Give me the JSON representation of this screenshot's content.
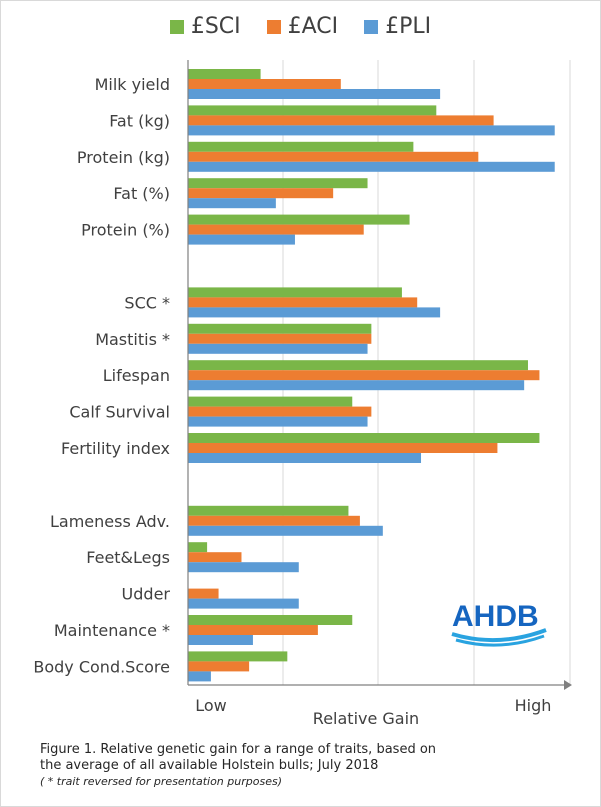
{
  "chart_data": {
    "type": "bar",
    "orientation": "horizontal",
    "categories": [
      "Milk yield",
      "Fat (kg)",
      "Protein (kg)",
      "Fat (%)",
      "Protein (%)",
      "",
      "SCC *",
      "Mastitis *",
      "Lifespan",
      "Calf Survival",
      "Fertility index",
      "",
      "Lameness Adv.",
      "Feet&Legs",
      "Udder",
      "Maintenance *",
      "Body Cond.Score"
    ],
    "series": [
      {
        "name": "£SCI",
        "color": "#7ab648",
        "values": [
          0.19,
          0.65,
          0.59,
          0.47,
          0.58,
          null,
          0.56,
          0.48,
          0.89,
          0.43,
          0.92,
          null,
          0.42,
          0.05,
          0.0,
          0.43,
          0.26
        ]
      },
      {
        "name": "£ACI",
        "color": "#ed7d31",
        "values": [
          0.4,
          0.8,
          0.76,
          0.38,
          0.46,
          null,
          0.6,
          0.48,
          0.92,
          0.48,
          0.81,
          null,
          0.45,
          0.14,
          0.08,
          0.34,
          0.16
        ]
      },
      {
        "name": "£PLI",
        "color": "#5b9bd5",
        "values": [
          0.66,
          0.96,
          0.96,
          0.23,
          0.28,
          null,
          0.66,
          0.47,
          0.88,
          0.47,
          0.61,
          null,
          0.51,
          0.29,
          0.29,
          0.17,
          0.06
        ]
      }
    ],
    "xlim": [
      0,
      1
    ],
    "x_tick_labels": [
      "Low",
      "High"
    ],
    "xlabel": "Relative Gain",
    "grid": "vertical",
    "legend_position": "top"
  },
  "caption": {
    "line1": "Figure 1. Relative  genetic gain  for a range of traits,  based on",
    "line2": "the average of all available  Holstein bulls; July 2018",
    "note": "( * trait reversed for presentation purposes)"
  },
  "logo": {
    "text": "AHDB",
    "color": "#1565c0"
  }
}
